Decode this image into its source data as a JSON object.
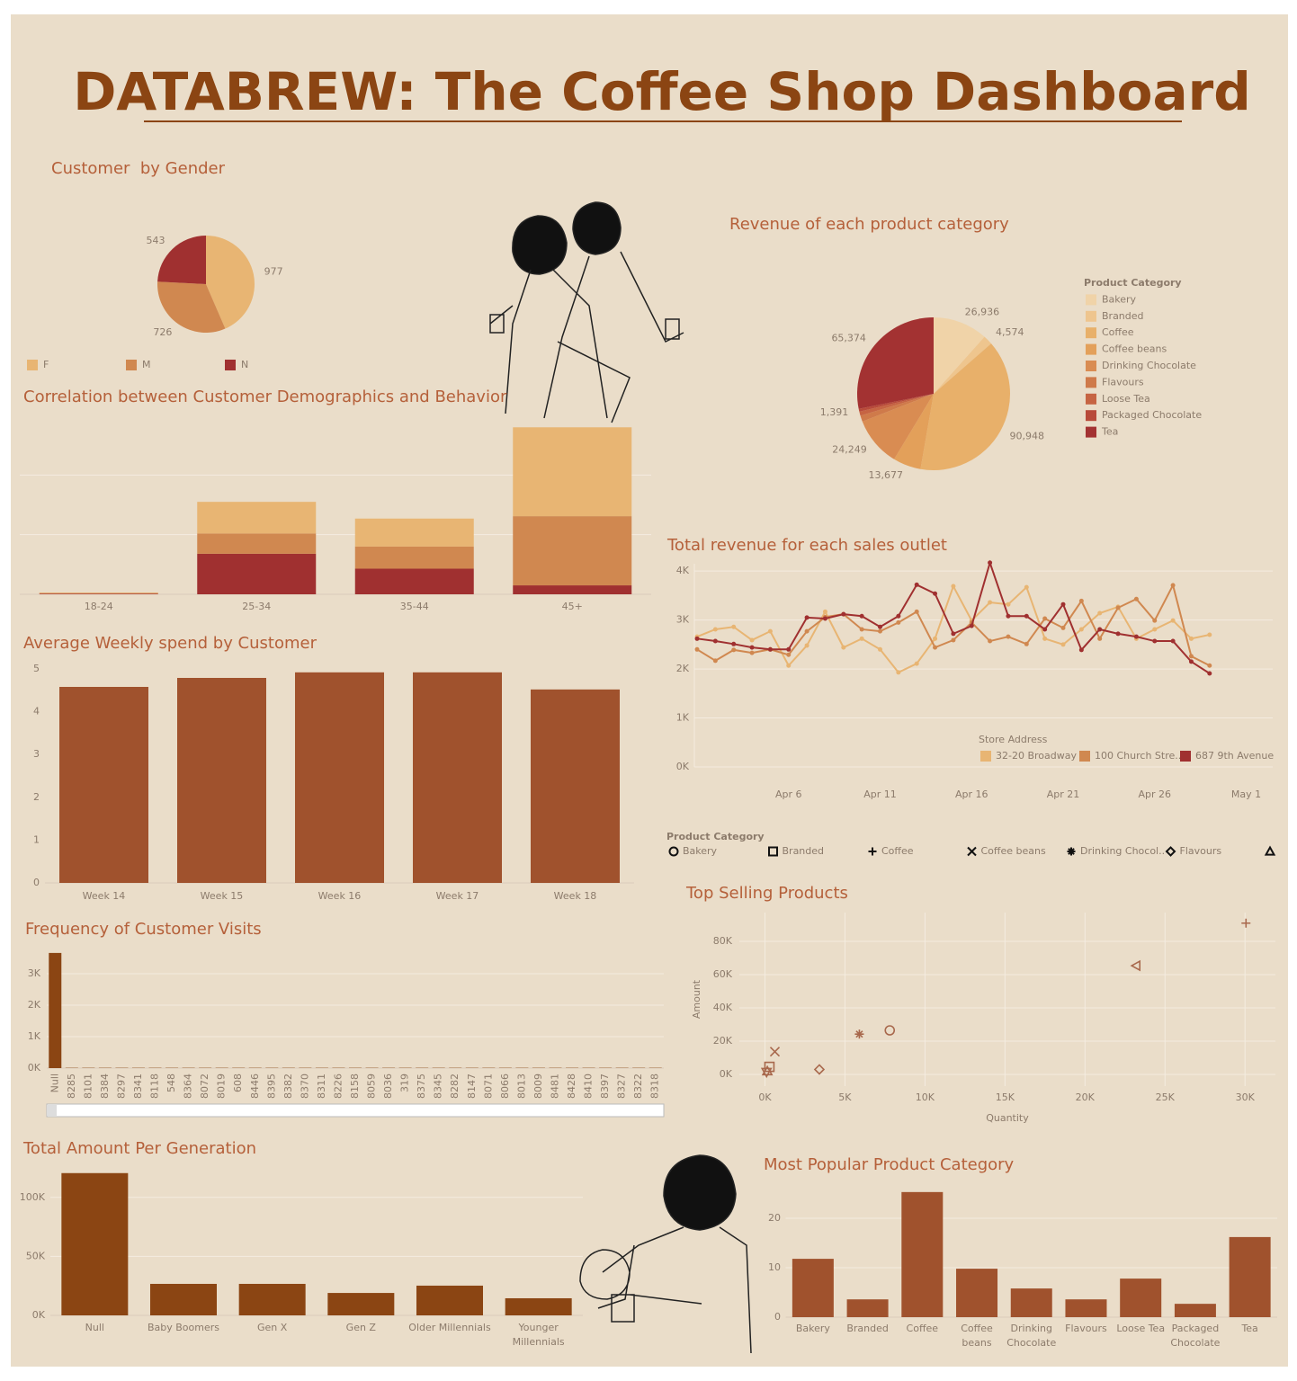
{
  "title": "DATABREW: The Coffee Shop Dashboard",
  "chart_data": [
    {
      "type": "pie",
      "title": "Customer  by Gender",
      "categories": [
        "F",
        "M",
        "N"
      ],
      "values": [
        977,
        726,
        543
      ],
      "colors": [
        "#e8b573",
        "#d08850",
        "#a03030"
      ],
      "legend": "bottom"
    },
    {
      "type": "bar",
      "stacked": true,
      "title": "Correlation between Customer Demographics and Behavior",
      "categories": [
        "18-24",
        "25-34",
        "35-44",
        "45+"
      ],
      "series": [
        {
          "color": "#a03030",
          "values": [
            1,
            68,
            43,
            15
          ]
        },
        {
          "color": "#d08850",
          "values": [
            1,
            34,
            37,
            116
          ]
        },
        {
          "color": "#e8b573",
          "values": [
            1,
            53,
            47,
            149
          ]
        }
      ],
      "ylim": [
        0,
        300
      ],
      "yticks": [
        0,
        100,
        200
      ],
      "grid": true,
      "ytick_labels": false
    },
    {
      "type": "bar",
      "title": "Average Weekly spend by Customer",
      "categories": [
        "Week 14",
        "Week 15",
        "Week 16",
        "Week 17",
        "Week 18"
      ],
      "values": [
        4.58,
        4.79,
        4.92,
        4.92,
        4.52
      ],
      "color": "#a0522d",
      "ylim": [
        0,
        5
      ],
      "yticks": [
        0,
        1,
        2,
        3,
        4,
        5
      ],
      "grid": false
    },
    {
      "type": "bar",
      "title": "Frequency of Customer Visits",
      "categories": [
        "Null",
        "8285",
        "8101",
        "8384",
        "8297",
        "8341",
        "8118",
        "548",
        "8364",
        "8072",
        "8019",
        "608",
        "8446",
        "8395",
        "8382",
        "8370",
        "8311",
        "8226",
        "8158",
        "8059",
        "8036",
        "319",
        "8375",
        "8345",
        "8282",
        "8147",
        "8071",
        "8066",
        "8013",
        "8009",
        "8481",
        "8428",
        "8410",
        "8397",
        "8327",
        "8322",
        "8318"
      ],
      "values": [
        3660,
        10,
        10,
        10,
        10,
        10,
        10,
        10,
        10,
        10,
        10,
        10,
        10,
        10,
        10,
        10,
        10,
        10,
        10,
        10,
        10,
        10,
        10,
        10,
        10,
        10,
        10,
        10,
        10,
        10,
        10,
        10,
        10,
        10,
        10,
        10,
        10
      ],
      "color": "#8b4513",
      "ylim": [
        0,
        3700
      ],
      "yticks": [
        {
          "value": 0,
          "label": "0K"
        },
        {
          "value": 1000,
          "label": "1K"
        },
        {
          "value": 2000,
          "label": "2K"
        },
        {
          "value": 3000,
          "label": "3K"
        }
      ],
      "grid": true
    },
    {
      "type": "bar",
      "title": "Total Amount Per Generation",
      "categories": [
        "Null",
        "Baby Boomers",
        "Gen X",
        "Gen Z",
        "Older Millennials",
        "Younger Millennials"
      ],
      "values": [
        120600,
        26700,
        26700,
        19000,
        25200,
        14500
      ],
      "color": "#8b4513",
      "ylim": [
        0,
        125000
      ],
      "yticks": [
        {
          "value": 0,
          "label": "0K"
        },
        {
          "value": 50000,
          "label": "50K"
        },
        {
          "value": 100000,
          "label": "100K"
        }
      ],
      "grid": true
    },
    {
      "type": "pie",
      "title": "Revenue of each product category",
      "legend_title": "Product Category",
      "categories": [
        "Bakery",
        "Branded",
        "Coffee",
        "Coffee beans",
        "Drinking Chocolate",
        "Flavours",
        "Loose Tea",
        "Packaged Chocolate",
        "Tea"
      ],
      "values": [
        26936,
        4574,
        90948,
        13677,
        24249,
        3000,
        2000,
        1391,
        65374
      ],
      "value_labels": [
        "26,936",
        "4,574",
        "90,948",
        "13,677",
        "24,249",
        null,
        null,
        "1,391",
        "65,374"
      ],
      "colors": [
        "#f0d3a8",
        "#eec58e",
        "#e8b06a",
        "#e3a05a",
        "#d98c52",
        "#cf7a4a",
        "#c66443",
        "#b84a3a",
        "#a33232"
      ],
      "legend": "right"
    },
    {
      "type": "line",
      "title": "Total revenue for each sales outlet",
      "legend_title": "Store Address",
      "x": [
        "Apr 1",
        "Apr 2",
        "Apr 3",
        "Apr 4",
        "Apr 5",
        "Apr 6",
        "Apr 7",
        "Apr 8",
        "Apr 9",
        "Apr 10",
        "Apr 11",
        "Apr 12",
        "Apr 13",
        "Apr 14",
        "Apr 15",
        "Apr 16",
        "Apr 17",
        "Apr 18",
        "Apr 19",
        "Apr 20",
        "Apr 21",
        "Apr 22",
        "Apr 23",
        "Apr 24",
        "Apr 25",
        "Apr 26",
        "Apr 27",
        "Apr 28",
        "Apr 29"
      ],
      "series": [
        {
          "name": "32-20 Broadway",
          "color": "#e8b573",
          "values": [
            2660,
            2810,
            2860,
            2590,
            2770,
            2070,
            2480,
            3170,
            2440,
            2620,
            2400,
            1930,
            2110,
            2620,
            3690,
            2990,
            3360,
            3320,
            3670,
            2620,
            2500,
            2810,
            3140,
            3270,
            2620,
            2810,
            2990,
            2620,
            2700
          ]
        },
        {
          "name": "100 Church Stre..",
          "color": "#d08850",
          "values": [
            2400,
            2170,
            2390,
            2330,
            2400,
            2290,
            2770,
            3060,
            3120,
            2810,
            2770,
            2950,
            3170,
            2440,
            2590,
            2950,
            2570,
            2660,
            2510,
            3030,
            2840,
            3390,
            2620,
            3250,
            3430,
            2990,
            3710,
            2260,
            2070
          ]
        },
        {
          "name": "687 9th Avenue",
          "color": "#a03030",
          "values": [
            2620,
            2570,
            2510,
            2440,
            2400,
            2400,
            3050,
            3030,
            3120,
            3080,
            2860,
            3080,
            3720,
            3540,
            2720,
            2880,
            4170,
            3080,
            3080,
            2810,
            3320,
            2390,
            2810,
            2720,
            2660,
            2570,
            2570,
            2150,
            1910
          ]
        }
      ],
      "xticks": [
        "Apr 6",
        "Apr 11",
        "Apr 16",
        "Apr 21",
        "Apr 26",
        "May 1"
      ],
      "ylim": [
        0,
        4150
      ],
      "yticks": [
        {
          "value": 0,
          "label": "0K"
        },
        {
          "value": 1000,
          "label": "1K"
        },
        {
          "value": 2000,
          "label": "2K"
        },
        {
          "value": 3000,
          "label": "3K"
        },
        {
          "value": 4000,
          "label": "4K"
        }
      ],
      "grid": true
    },
    {
      "type": "scatter",
      "title": "Top Selling Products",
      "legend_title": "Product Category",
      "x_label": "Quantity",
      "y_label": "Amount",
      "color": "#a8684c",
      "series": [
        {
          "name": "Bakery",
          "marker": "circle",
          "x": [
            7800
          ],
          "y": [
            26500
          ]
        },
        {
          "name": "Branded",
          "marker": "square",
          "x": [
            280
          ],
          "y": [
            4574
          ]
        },
        {
          "name": "Coffee",
          "marker": "plus",
          "x": [
            30060
          ],
          "y": [
            90948
          ]
        },
        {
          "name": "Coffee beans",
          "marker": "cross",
          "x": [
            620
          ],
          "y": [
            13677
          ]
        },
        {
          "name": "Drinking Chocol..",
          "marker": "asterisk",
          "x": [
            5900
          ],
          "y": [
            24249
          ]
        },
        {
          "name": "Flavours",
          "marker": "diamond",
          "x": [
            3400
          ],
          "y": [
            3000
          ]
        },
        {
          "name": null,
          "marker": "triangle-up",
          "x": [
            150
          ],
          "y": [
            2000
          ]
        },
        {
          "name": null,
          "marker": "triangle-down",
          "x": [
            100
          ],
          "y": [
            1391
          ]
        },
        {
          "name": null,
          "marker": "triangle-left",
          "x": [
            23200
          ],
          "y": [
            65374
          ]
        }
      ],
      "xlim": [
        -1600,
        31900
      ],
      "ylim": [
        -7000,
        97300
      ],
      "xticks": [
        {
          "value": 0,
          "label": "0K"
        },
        {
          "value": 5000,
          "label": "5K"
        },
        {
          "value": 10000,
          "label": "10K"
        },
        {
          "value": 15000,
          "label": "15K"
        },
        {
          "value": 20000,
          "label": "20K"
        },
        {
          "value": 25000,
          "label": "25K"
        },
        {
          "value": 30000,
          "label": "30K"
        }
      ],
      "yticks": [
        {
          "value": 0,
          "label": "0K"
        },
        {
          "value": 20000,
          "label": "20K"
        },
        {
          "value": 40000,
          "label": "40K"
        },
        {
          "value": 60000,
          "label": "60K"
        },
        {
          "value": 80000,
          "label": "80K"
        }
      ],
      "grid": true
    },
    {
      "type": "bar",
      "title": "Most Popular Product Category",
      "categories": [
        "Bakery",
        "Branded",
        "Coffee",
        "Coffee beans",
        "Drinking Chocolate",
        "Flavours",
        "Loose Tea",
        "Packaged Chocolate",
        "Tea"
      ],
      "values": [
        11.8,
        3.6,
        25.3,
        9.8,
        5.8,
        3.6,
        7.8,
        2.7,
        16.2
      ],
      "color": "#a0522d",
      "ylim": [
        0,
        26
      ],
      "yticks": [
        0,
        10,
        20
      ],
      "grid": true
    }
  ]
}
